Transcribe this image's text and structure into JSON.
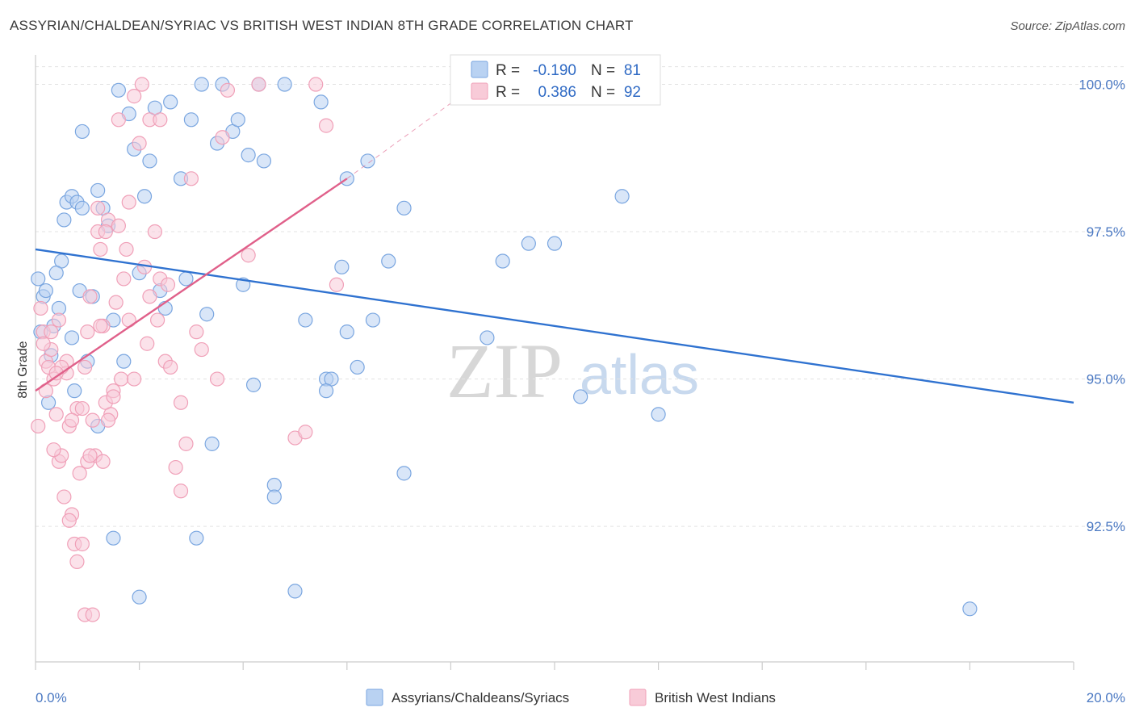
{
  "header": {
    "title": "ASSYRIAN/CHALDEAN/SYRIAC VS BRITISH WEST INDIAN 8TH GRADE CORRELATION CHART",
    "source": "Source: ZipAtlas.com"
  },
  "watermark": {
    "zip": "ZIP",
    "atlas": "atlas"
  },
  "chart_data": {
    "type": "scatter",
    "title": "ASSYRIAN/CHALDEAN/SYRIAC VS BRITISH WEST INDIAN 8TH GRADE CORRELATION CHART",
    "xlabel": "",
    "ylabel": "8th Grade",
    "xlim": [
      0,
      20
    ],
    "ylim": [
      90.2,
      100.5
    ],
    "x_tick_labels": [
      "0.0%",
      "20.0%"
    ],
    "y_ticks": [
      92.5,
      95.0,
      97.5,
      100.0
    ],
    "y_tick_labels": [
      "92.5%",
      "95.0%",
      "97.5%",
      "100.0%"
    ],
    "legend": {
      "r_label": "R =",
      "n_label": "N =",
      "entries": [
        {
          "r": "-0.190",
          "n": "81"
        },
        {
          "r": "0.386",
          "n": "92"
        }
      ]
    },
    "series": [
      {
        "name": "Assyrians/Chaldeans/Syriacs",
        "color": "#7aa6e0",
        "fill": "#b9d2f2",
        "line_color": "#2f72d0",
        "trend": {
          "x": [
            0,
            20
          ],
          "y": [
            97.2,
            94.6
          ]
        },
        "points": [
          [
            0.05,
            96.7
          ],
          [
            0.1,
            95.8
          ],
          [
            0.15,
            96.4
          ],
          [
            0.2,
            96.5
          ],
          [
            0.25,
            94.6
          ],
          [
            0.35,
            95.9
          ],
          [
            0.45,
            96.2
          ],
          [
            0.5,
            97.0
          ],
          [
            0.6,
            98.0
          ],
          [
            0.7,
            98.1
          ],
          [
            0.8,
            98.0
          ],
          [
            0.9,
            97.9
          ],
          [
            0.3,
            95.4
          ],
          [
            0.4,
            96.8
          ],
          [
            0.55,
            97.7
          ],
          [
            0.7,
            95.7
          ],
          [
            0.75,
            94.8
          ],
          [
            0.85,
            96.5
          ],
          [
            0.9,
            99.2
          ],
          [
            1.0,
            95.3
          ],
          [
            1.1,
            96.4
          ],
          [
            1.2,
            98.2
          ],
          [
            1.3,
            97.9
          ],
          [
            1.4,
            97.6
          ],
          [
            1.5,
            96.0
          ],
          [
            1.6,
            99.9
          ],
          [
            1.7,
            95.3
          ],
          [
            1.8,
            99.5
          ],
          [
            1.9,
            98.9
          ],
          [
            2.0,
            96.8
          ],
          [
            2.1,
            98.1
          ],
          [
            2.2,
            98.7
          ],
          [
            2.3,
            99.6
          ],
          [
            2.4,
            96.5
          ],
          [
            2.5,
            96.2
          ],
          [
            2.6,
            99.7
          ],
          [
            2.8,
            98.4
          ],
          [
            2.9,
            96.7
          ],
          [
            3.0,
            99.4
          ],
          [
            3.2,
            100.0
          ],
          [
            3.3,
            96.1
          ],
          [
            3.5,
            99.0
          ],
          [
            3.6,
            100.0
          ],
          [
            3.8,
            99.2
          ],
          [
            3.9,
            99.4
          ],
          [
            4.0,
            96.6
          ],
          [
            4.1,
            98.8
          ],
          [
            4.3,
            100.0
          ],
          [
            4.4,
            98.7
          ],
          [
            4.8,
            100.0
          ],
          [
            5.2,
            96.0
          ],
          [
            5.5,
            99.7
          ],
          [
            5.6,
            95.0
          ],
          [
            5.7,
            95.0
          ],
          [
            5.9,
            96.9
          ],
          [
            6.0,
            98.4
          ],
          [
            6.2,
            95.2
          ],
          [
            6.4,
            98.7
          ],
          [
            6.5,
            96.0
          ],
          [
            6.8,
            97.0
          ],
          [
            7.1,
            97.9
          ],
          [
            8.7,
            95.7
          ],
          [
            9.0,
            97.0
          ],
          [
            9.5,
            97.3
          ],
          [
            10.0,
            97.3
          ],
          [
            10.5,
            94.7
          ],
          [
            11.3,
            98.1
          ],
          [
            12.0,
            94.4
          ],
          [
            4.2,
            94.9
          ],
          [
            3.1,
            92.3
          ],
          [
            4.6,
            93.2
          ],
          [
            4.6,
            93.0
          ],
          [
            5.0,
            91.4
          ],
          [
            7.1,
            93.4
          ],
          [
            2.0,
            91.3
          ],
          [
            1.5,
            92.3
          ],
          [
            1.2,
            94.2
          ],
          [
            3.4,
            93.9
          ],
          [
            18.0,
            91.1
          ],
          [
            5.6,
            94.8
          ],
          [
            6.0,
            95.8
          ]
        ]
      },
      {
        "name": "British West Indians",
        "color": "#f0a0b8",
        "fill": "#f8cbd8",
        "line_color": "#e0608a",
        "trend": {
          "x": [
            0,
            6
          ],
          "y": [
            94.8,
            98.4
          ]
        },
        "trend_ext": {
          "x": [
            6,
            8.5
          ],
          "y": [
            98.4,
            100.0
          ]
        },
        "points": [
          [
            0.05,
            94.2
          ],
          [
            0.1,
            96.2
          ],
          [
            0.15,
            95.8
          ],
          [
            0.2,
            95.3
          ],
          [
            0.25,
            95.2
          ],
          [
            0.3,
            95.5
          ],
          [
            0.35,
            95.0
          ],
          [
            0.4,
            94.4
          ],
          [
            0.45,
            93.6
          ],
          [
            0.5,
            93.7
          ],
          [
            0.55,
            93.0
          ],
          [
            0.6,
            95.3
          ],
          [
            0.65,
            94.2
          ],
          [
            0.7,
            92.7
          ],
          [
            0.75,
            92.2
          ],
          [
            0.8,
            94.5
          ],
          [
            0.85,
            93.4
          ],
          [
            0.9,
            92.2
          ],
          [
            0.95,
            95.2
          ],
          [
            1.0,
            95.8
          ],
          [
            1.05,
            96.4
          ],
          [
            1.1,
            94.3
          ],
          [
            1.15,
            93.7
          ],
          [
            1.2,
            97.5
          ],
          [
            1.25,
            97.2
          ],
          [
            1.3,
            95.9
          ],
          [
            1.35,
            94.6
          ],
          [
            1.4,
            97.7
          ],
          [
            1.45,
            94.4
          ],
          [
            1.5,
            94.8
          ],
          [
            1.55,
            96.3
          ],
          [
            1.6,
            99.4
          ],
          [
            1.65,
            95.0
          ],
          [
            1.7,
            96.7
          ],
          [
            1.8,
            96.0
          ],
          [
            1.9,
            95.0
          ],
          [
            2.0,
            99.0
          ],
          [
            2.1,
            96.9
          ],
          [
            2.2,
            96.4
          ],
          [
            2.3,
            97.5
          ],
          [
            2.4,
            96.7
          ],
          [
            2.5,
            95.3
          ],
          [
            2.6,
            95.2
          ],
          [
            2.7,
            93.5
          ],
          [
            2.8,
            93.1
          ],
          [
            2.9,
            93.9
          ],
          [
            3.0,
            98.4
          ],
          [
            3.1,
            95.8
          ],
          [
            3.2,
            95.5
          ],
          [
            3.5,
            95.0
          ],
          [
            3.6,
            99.1
          ],
          [
            3.7,
            99.9
          ],
          [
            4.1,
            97.1
          ],
          [
            4.3,
            100.0
          ],
          [
            5.0,
            94.0
          ],
          [
            5.2,
            94.1
          ],
          [
            5.4,
            100.0
          ],
          [
            5.6,
            99.3
          ],
          [
            5.8,
            96.6
          ],
          [
            0.6,
            95.1
          ],
          [
            0.9,
            94.5
          ],
          [
            1.0,
            93.6
          ],
          [
            1.3,
            93.6
          ],
          [
            1.4,
            94.3
          ],
          [
            0.35,
            93.8
          ],
          [
            0.65,
            92.6
          ],
          [
            0.8,
            91.9
          ],
          [
            0.95,
            91.0
          ],
          [
            1.1,
            91.0
          ],
          [
            0.5,
            95.2
          ],
          [
            0.3,
            95.8
          ],
          [
            1.2,
            97.9
          ],
          [
            1.6,
            97.6
          ],
          [
            1.9,
            99.8
          ],
          [
            2.2,
            99.4
          ],
          [
            2.4,
            99.4
          ],
          [
            1.8,
            98.0
          ],
          [
            1.35,
            97.5
          ],
          [
            2.05,
            100.0
          ],
          [
            2.8,
            94.6
          ],
          [
            0.2,
            94.8
          ],
          [
            0.4,
            95.1
          ],
          [
            1.75,
            97.2
          ],
          [
            1.05,
            93.7
          ],
          [
            2.15,
            95.6
          ],
          [
            2.55,
            96.6
          ],
          [
            0.15,
            95.6
          ],
          [
            0.7,
            94.3
          ],
          [
            1.5,
            94.7
          ],
          [
            2.35,
            96.0
          ],
          [
            1.25,
            95.9
          ],
          [
            0.45,
            96.0
          ]
        ]
      }
    ]
  }
}
